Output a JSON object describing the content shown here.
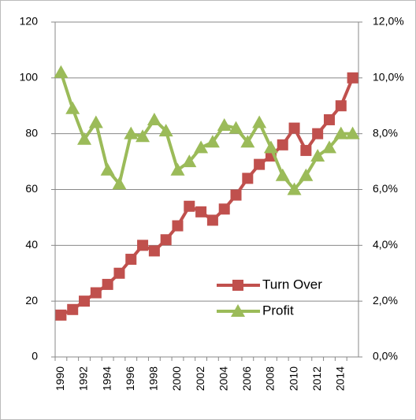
{
  "chart_data": {
    "type": "line",
    "categories": [
      "1990",
      null,
      "1992",
      null,
      "1994",
      null,
      "1996",
      null,
      "1998",
      null,
      "2000",
      null,
      "2002",
      null,
      "2004",
      null,
      "2006",
      null,
      "2008",
      null,
      "2010",
      null,
      "2012",
      null,
      "2014",
      null
    ],
    "series": [
      {
        "name": "Turn Over",
        "color": "#c0504d",
        "marker": "square",
        "values": [
          15,
          17,
          20,
          23,
          26,
          30,
          35,
          40,
          38,
          42,
          47,
          54,
          52,
          49,
          53,
          58,
          64,
          69,
          72,
          76,
          82,
          74,
          80,
          85,
          90,
          100
        ]
      },
      {
        "name": "Profit",
        "color": "#9bbb59",
        "marker": "triangle",
        "axis": "y2",
        "values": [
          10.2,
          8.9,
          7.8,
          8.4,
          6.7,
          6.2,
          8.0,
          7.9,
          8.5,
          8.1,
          6.7,
          7.0,
          7.5,
          7.7,
          8.3,
          8.2,
          7.7,
          8.4,
          7.5,
          6.5,
          6.0,
          6.5,
          7.2,
          7.5,
          8.0,
          8.0
        ]
      }
    ],
    "ylim": [
      0,
      120
    ],
    "yticks": [
      0,
      20,
      40,
      60,
      80,
      100,
      120
    ],
    "y2lim": [
      0,
      12
    ],
    "y2ticks": [
      {
        "value": 0,
        "label": "0,0%"
      },
      {
        "value": 2,
        "label": "2,0%"
      },
      {
        "value": 4,
        "label": "4,0%"
      },
      {
        "value": 6,
        "label": "6,0%"
      },
      {
        "value": 8,
        "label": "8,0%"
      },
      {
        "value": 10,
        "label": "10,0%"
      },
      {
        "value": 12,
        "label": "12,0%"
      }
    ],
    "grid": true,
    "legend": "lower right"
  }
}
